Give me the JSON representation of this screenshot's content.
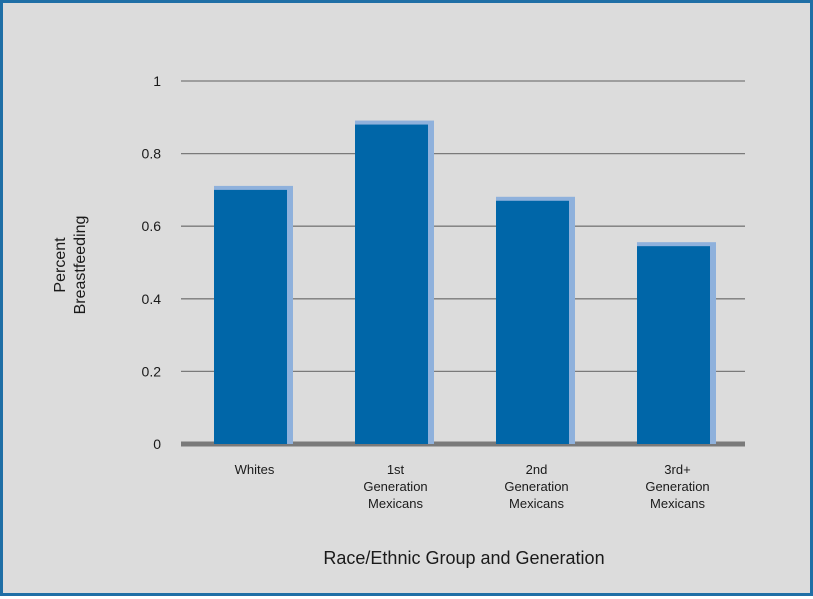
{
  "chart_data": {
    "type": "bar",
    "title": "",
    "xlabel": "Race/Ethnic Group and Generation",
    "ylabel_lines": [
      "Percent",
      "Breastfeeding"
    ],
    "categories": [
      [
        "Whites"
      ],
      [
        "1st",
        "Generation",
        "Mexicans"
      ],
      [
        "2nd",
        "Generation",
        "Mexicans"
      ],
      [
        "3rd+",
        "Generation",
        "Mexicans"
      ]
    ],
    "values": [
      0.7,
      0.88,
      0.67,
      0.545
    ],
    "ylim": [
      0,
      1
    ],
    "yticks": [
      0,
      0.2,
      0.4,
      0.6,
      0.8,
      1
    ],
    "ytick_labels": [
      "0",
      "0.2",
      "0.4",
      "0.6",
      "0.8",
      "1"
    ],
    "grid": true,
    "legend": "none"
  },
  "colors": {
    "background": "#dcdcdc",
    "frame_border": "#1f6fa6",
    "bar_fill": "#0066a8",
    "bar_shadow": "#8fb1dc",
    "gridline": "#7a7a7a",
    "baseline": "#7a7a7a"
  }
}
